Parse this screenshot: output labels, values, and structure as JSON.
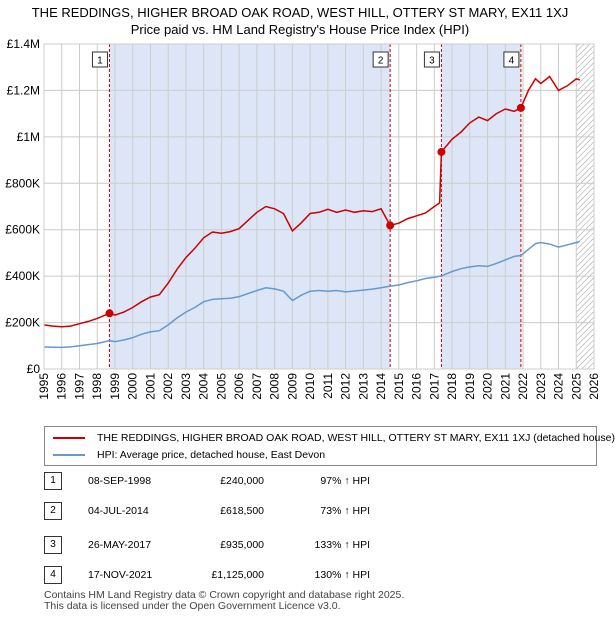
{
  "title_line1": "THE REDDINGS, HIGHER BROAD OAK ROAD, WEST HILL, OTTERY ST MARY, EX11 1XJ",
  "title_line2": "Price paid vs. HM Land Registry's House Price Index (HPI)",
  "colors": {
    "property": "#cc0000",
    "hpi": "#6699cc",
    "band": "#dde6f7",
    "marker_line": "#cc0000"
  },
  "chart_data": {
    "type": "line",
    "xlim": [
      1995,
      2026
    ],
    "ylim": [
      0,
      1400000
    ],
    "y_ticks": [
      {
        "value": 0,
        "label": "£0"
      },
      {
        "value": 200000,
        "label": "£200K"
      },
      {
        "value": 400000,
        "label": "£400K"
      },
      {
        "value": 600000,
        "label": "£600K"
      },
      {
        "value": 800000,
        "label": "£800K"
      },
      {
        "value": 1000000,
        "label": "£1M"
      },
      {
        "value": 1200000,
        "label": "£1.2M"
      },
      {
        "value": 1400000,
        "label": "£1.4M"
      }
    ],
    "x_ticks": [
      "1995",
      "1996",
      "1997",
      "1998",
      "1999",
      "2000",
      "2001",
      "2002",
      "2003",
      "2004",
      "2005",
      "2006",
      "2007",
      "2008",
      "2009",
      "2010",
      "2011",
      "2012",
      "2013",
      "2014",
      "2015",
      "2016",
      "2017",
      "2018",
      "2019",
      "2020",
      "2021",
      "2022",
      "2023",
      "2024",
      "2025",
      "2026"
    ],
    "shaded_ranges": [
      [
        1998.69,
        2014.51
      ],
      [
        2017.4,
        2021.88
      ]
    ],
    "hatched_from": 2025.0,
    "series": [
      {
        "name": "THE REDDINGS, HIGHER BROAD OAK ROAD, WEST HILL, OTTERY ST MARY, EX11 1XJ (detached house)",
        "color": "#cc0000",
        "points": [
          [
            1995.0,
            190000
          ],
          [
            1995.5,
            185000
          ],
          [
            1996.0,
            182000
          ],
          [
            1996.5,
            185000
          ],
          [
            1997.0,
            195000
          ],
          [
            1997.5,
            205000
          ],
          [
            1998.0,
            218000
          ],
          [
            1998.69,
            240000
          ],
          [
            1999.0,
            232000
          ],
          [
            1999.5,
            245000
          ],
          [
            2000.0,
            265000
          ],
          [
            2000.5,
            290000
          ],
          [
            2001.0,
            310000
          ],
          [
            2001.5,
            320000
          ],
          [
            2002.0,
            370000
          ],
          [
            2002.5,
            430000
          ],
          [
            2003.0,
            480000
          ],
          [
            2003.5,
            520000
          ],
          [
            2004.0,
            565000
          ],
          [
            2004.5,
            590000
          ],
          [
            2005.0,
            585000
          ],
          [
            2005.5,
            592000
          ],
          [
            2006.0,
            605000
          ],
          [
            2006.5,
            640000
          ],
          [
            2007.0,
            675000
          ],
          [
            2007.5,
            700000
          ],
          [
            2008.0,
            690000
          ],
          [
            2008.5,
            670000
          ],
          [
            2009.0,
            595000
          ],
          [
            2009.5,
            630000
          ],
          [
            2010.0,
            670000
          ],
          [
            2010.5,
            675000
          ],
          [
            2011.0,
            688000
          ],
          [
            2011.5,
            675000
          ],
          [
            2012.0,
            685000
          ],
          [
            2012.5,
            675000
          ],
          [
            2013.0,
            682000
          ],
          [
            2013.5,
            678000
          ],
          [
            2014.0,
            690000
          ],
          [
            2014.51,
            618500
          ],
          [
            2015.0,
            628000
          ],
          [
            2015.5,
            648000
          ],
          [
            2016.0,
            660000
          ],
          [
            2016.5,
            672000
          ],
          [
            2017.0,
            700000
          ],
          [
            2017.3,
            715000
          ],
          [
            2017.4,
            935000
          ],
          [
            2018.0,
            990000
          ],
          [
            2018.5,
            1020000
          ],
          [
            2019.0,
            1060000
          ],
          [
            2019.5,
            1085000
          ],
          [
            2020.0,
            1070000
          ],
          [
            2020.5,
            1100000
          ],
          [
            2021.0,
            1120000
          ],
          [
            2021.5,
            1110000
          ],
          [
            2021.88,
            1125000
          ],
          [
            2022.3,
            1200000
          ],
          [
            2022.7,
            1250000
          ],
          [
            2023.0,
            1230000
          ],
          [
            2023.5,
            1260000
          ],
          [
            2024.0,
            1200000
          ],
          [
            2024.5,
            1220000
          ],
          [
            2025.0,
            1250000
          ],
          [
            2025.2,
            1245000
          ]
        ]
      },
      {
        "name": "HPI: Average price, detached house, East Devon",
        "color": "#6699cc",
        "points": [
          [
            1995.0,
            95000
          ],
          [
            1995.5,
            94000
          ],
          [
            1996.0,
            93000
          ],
          [
            1996.5,
            95000
          ],
          [
            1997.0,
            100000
          ],
          [
            1997.5,
            105000
          ],
          [
            1998.0,
            110000
          ],
          [
            1998.69,
            122000
          ],
          [
            1999.0,
            118000
          ],
          [
            1999.5,
            125000
          ],
          [
            2000.0,
            135000
          ],
          [
            2000.5,
            150000
          ],
          [
            2001.0,
            160000
          ],
          [
            2001.5,
            165000
          ],
          [
            2002.0,
            190000
          ],
          [
            2002.5,
            220000
          ],
          [
            2003.0,
            245000
          ],
          [
            2003.5,
            265000
          ],
          [
            2004.0,
            290000
          ],
          [
            2004.5,
            300000
          ],
          [
            2005.0,
            303000
          ],
          [
            2005.5,
            305000
          ],
          [
            2006.0,
            312000
          ],
          [
            2006.5,
            325000
          ],
          [
            2007.0,
            338000
          ],
          [
            2007.5,
            350000
          ],
          [
            2008.0,
            345000
          ],
          [
            2008.5,
            335000
          ],
          [
            2009.0,
            295000
          ],
          [
            2009.5,
            318000
          ],
          [
            2010.0,
            335000
          ],
          [
            2010.5,
            338000
          ],
          [
            2011.0,
            335000
          ],
          [
            2011.5,
            338000
          ],
          [
            2012.0,
            332000
          ],
          [
            2012.5,
            336000
          ],
          [
            2013.0,
            340000
          ],
          [
            2013.5,
            344000
          ],
          [
            2014.0,
            350000
          ],
          [
            2014.51,
            357000
          ],
          [
            2015.0,
            362000
          ],
          [
            2015.5,
            372000
          ],
          [
            2016.0,
            380000
          ],
          [
            2016.5,
            390000
          ],
          [
            2017.0,
            395000
          ],
          [
            2017.4,
            401000
          ],
          [
            2018.0,
            420000
          ],
          [
            2018.5,
            432000
          ],
          [
            2019.0,
            440000
          ],
          [
            2019.5,
            445000
          ],
          [
            2020.0,
            442000
          ],
          [
            2020.5,
            455000
          ],
          [
            2021.0,
            470000
          ],
          [
            2021.5,
            485000
          ],
          [
            2021.88,
            489000
          ],
          [
            2022.3,
            515000
          ],
          [
            2022.7,
            540000
          ],
          [
            2023.0,
            545000
          ],
          [
            2023.5,
            538000
          ],
          [
            2024.0,
            525000
          ],
          [
            2024.5,
            535000
          ],
          [
            2025.0,
            545000
          ],
          [
            2025.2,
            550000
          ]
        ]
      }
    ],
    "markers": [
      {
        "label": "1",
        "x": 1998.69,
        "y": 240000
      },
      {
        "label": "2",
        "x": 2014.51,
        "y": 618500
      },
      {
        "label": "3",
        "x": 2017.4,
        "y": 935000
      },
      {
        "label": "4",
        "x": 2021.88,
        "y": 1125000
      }
    ]
  },
  "legend": {
    "property_label": "THE REDDINGS, HIGHER BROAD OAK ROAD, WEST HILL, OTTERY ST MARY, EX11 1XJ (detached house)",
    "hpi_label": "HPI: Average price, detached house, East Devon"
  },
  "sales": [
    {
      "num": "1",
      "date": "08-SEP-1998",
      "price": "£240,000",
      "hpi": "97% ↑ HPI"
    },
    {
      "num": "2",
      "date": "04-JUL-2014",
      "price": "£618,500",
      "hpi": "73% ↑ HPI"
    },
    {
      "num": "3",
      "date": "26-MAY-2017",
      "price": "£935,000",
      "hpi": "133% ↑ HPI"
    },
    {
      "num": "4",
      "date": "17-NOV-2021",
      "price": "£1,125,000",
      "hpi": "130% ↑ HPI"
    }
  ],
  "footer_line1": "Contains HM Land Registry data © Crown copyright and database right 2025.",
  "footer_line2": "This data is licensed under the Open Government Licence v3.0."
}
